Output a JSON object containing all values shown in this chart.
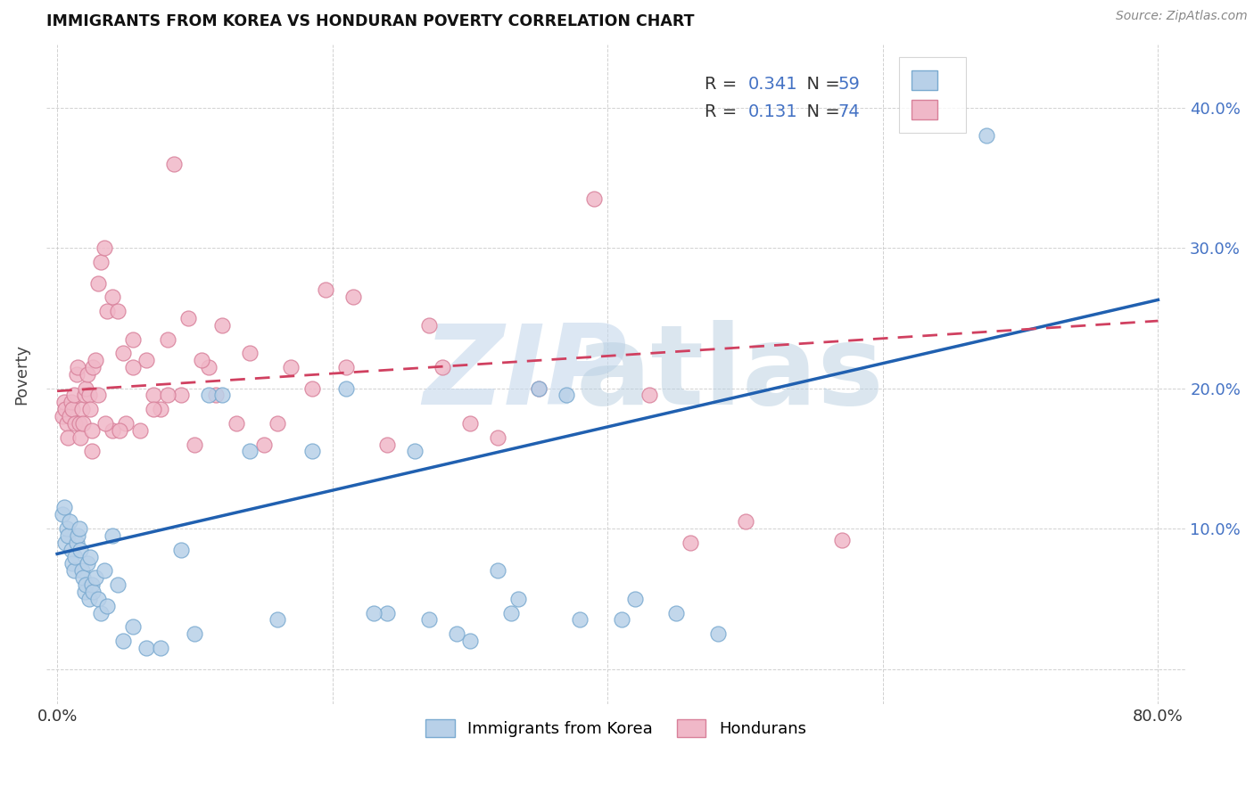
{
  "title": "IMMIGRANTS FROM KOREA VS HONDURAN POVERTY CORRELATION CHART",
  "source": "Source: ZipAtlas.com",
  "ylabel": "Poverty",
  "xlim": [
    -0.008,
    0.82
  ],
  "ylim": [
    -0.025,
    0.445
  ],
  "ytick_vals": [
    0.0,
    0.1,
    0.2,
    0.3,
    0.4
  ],
  "ytick_labels_right": [
    "",
    "10.0%",
    "20.0%",
    "30.0%",
    "40.0%"
  ],
  "xtick_vals": [
    0.0,
    0.2,
    0.4,
    0.6,
    0.8
  ],
  "xtick_labels": [
    "0.0%",
    "",
    "",
    "",
    "80.0%"
  ],
  "legend_R_blue": "0.341",
  "legend_N_blue": "59",
  "legend_R_pink": "0.131",
  "legend_N_pink": "74",
  "blue_face": "#b8d0e8",
  "blue_edge": "#7aaad0",
  "blue_line_color": "#2060b0",
  "pink_face": "#f0b8c8",
  "pink_edge": "#d8809a",
  "pink_line_color": "#d04060",
  "grid_color": "#cccccc",
  "title_color": "#111111",
  "source_color": "#888888",
  "label_legend_blue": "Immigrants from Korea",
  "label_legend_pink": "Hondurans",
  "blue_line_x0": 0.0,
  "blue_line_y0": 0.082,
  "blue_line_x1": 0.8,
  "blue_line_y1": 0.263,
  "pink_line_x0": 0.0,
  "pink_line_y0": 0.198,
  "pink_line_x1": 0.8,
  "pink_line_y1": 0.248,
  "blue_x": [
    0.004,
    0.005,
    0.006,
    0.007,
    0.008,
    0.009,
    0.01,
    0.011,
    0.012,
    0.013,
    0.014,
    0.015,
    0.016,
    0.017,
    0.018,
    0.019,
    0.02,
    0.021,
    0.022,
    0.023,
    0.024,
    0.025,
    0.026,
    0.028,
    0.03,
    0.032,
    0.034,
    0.036,
    0.04,
    0.044,
    0.048,
    0.055,
    0.065,
    0.075,
    0.09,
    0.1,
    0.11,
    0.12,
    0.14,
    0.16,
    0.185,
    0.21,
    0.24,
    0.27,
    0.3,
    0.335,
    0.37,
    0.41,
    0.45,
    0.48,
    0.42,
    0.38,
    0.32,
    0.35,
    0.29,
    0.26,
    0.23,
    0.675,
    0.33
  ],
  "blue_y": [
    0.11,
    0.115,
    0.09,
    0.1,
    0.095,
    0.105,
    0.085,
    0.075,
    0.07,
    0.08,
    0.09,
    0.095,
    0.1,
    0.085,
    0.07,
    0.065,
    0.055,
    0.06,
    0.075,
    0.05,
    0.08,
    0.06,
    0.055,
    0.065,
    0.05,
    0.04,
    0.07,
    0.045,
    0.095,
    0.06,
    0.02,
    0.03,
    0.015,
    0.015,
    0.085,
    0.025,
    0.195,
    0.195,
    0.155,
    0.035,
    0.155,
    0.2,
    0.04,
    0.035,
    0.02,
    0.05,
    0.195,
    0.035,
    0.04,
    0.025,
    0.05,
    0.035,
    0.07,
    0.2,
    0.025,
    0.155,
    0.04,
    0.38,
    0.04
  ],
  "pink_x": [
    0.004,
    0.005,
    0.006,
    0.007,
    0.008,
    0.009,
    0.01,
    0.011,
    0.012,
    0.013,
    0.014,
    0.015,
    0.016,
    0.017,
    0.018,
    0.019,
    0.02,
    0.021,
    0.022,
    0.023,
    0.024,
    0.025,
    0.026,
    0.028,
    0.03,
    0.032,
    0.034,
    0.036,
    0.04,
    0.044,
    0.048,
    0.055,
    0.065,
    0.075,
    0.09,
    0.1,
    0.11,
    0.12,
    0.14,
    0.16,
    0.185,
    0.21,
    0.24,
    0.27,
    0.3,
    0.08,
    0.095,
    0.105,
    0.115,
    0.13,
    0.15,
    0.17,
    0.05,
    0.06,
    0.07,
    0.085,
    0.35,
    0.28,
    0.32,
    0.04,
    0.025,
    0.03,
    0.035,
    0.045,
    0.57,
    0.39,
    0.43,
    0.46,
    0.5,
    0.055,
    0.07,
    0.08,
    0.195,
    0.215
  ],
  "pink_y": [
    0.18,
    0.19,
    0.185,
    0.175,
    0.165,
    0.18,
    0.19,
    0.185,
    0.195,
    0.175,
    0.21,
    0.215,
    0.175,
    0.165,
    0.185,
    0.175,
    0.195,
    0.2,
    0.21,
    0.195,
    0.185,
    0.17,
    0.215,
    0.22,
    0.275,
    0.29,
    0.3,
    0.255,
    0.265,
    0.255,
    0.225,
    0.235,
    0.22,
    0.185,
    0.195,
    0.16,
    0.215,
    0.245,
    0.225,
    0.175,
    0.2,
    0.215,
    0.16,
    0.245,
    0.175,
    0.235,
    0.25,
    0.22,
    0.195,
    0.175,
    0.16,
    0.215,
    0.175,
    0.17,
    0.195,
    0.36,
    0.2,
    0.215,
    0.165,
    0.17,
    0.155,
    0.195,
    0.175,
    0.17,
    0.092,
    0.335,
    0.195,
    0.09,
    0.105,
    0.215,
    0.185,
    0.195,
    0.27,
    0.265
  ]
}
